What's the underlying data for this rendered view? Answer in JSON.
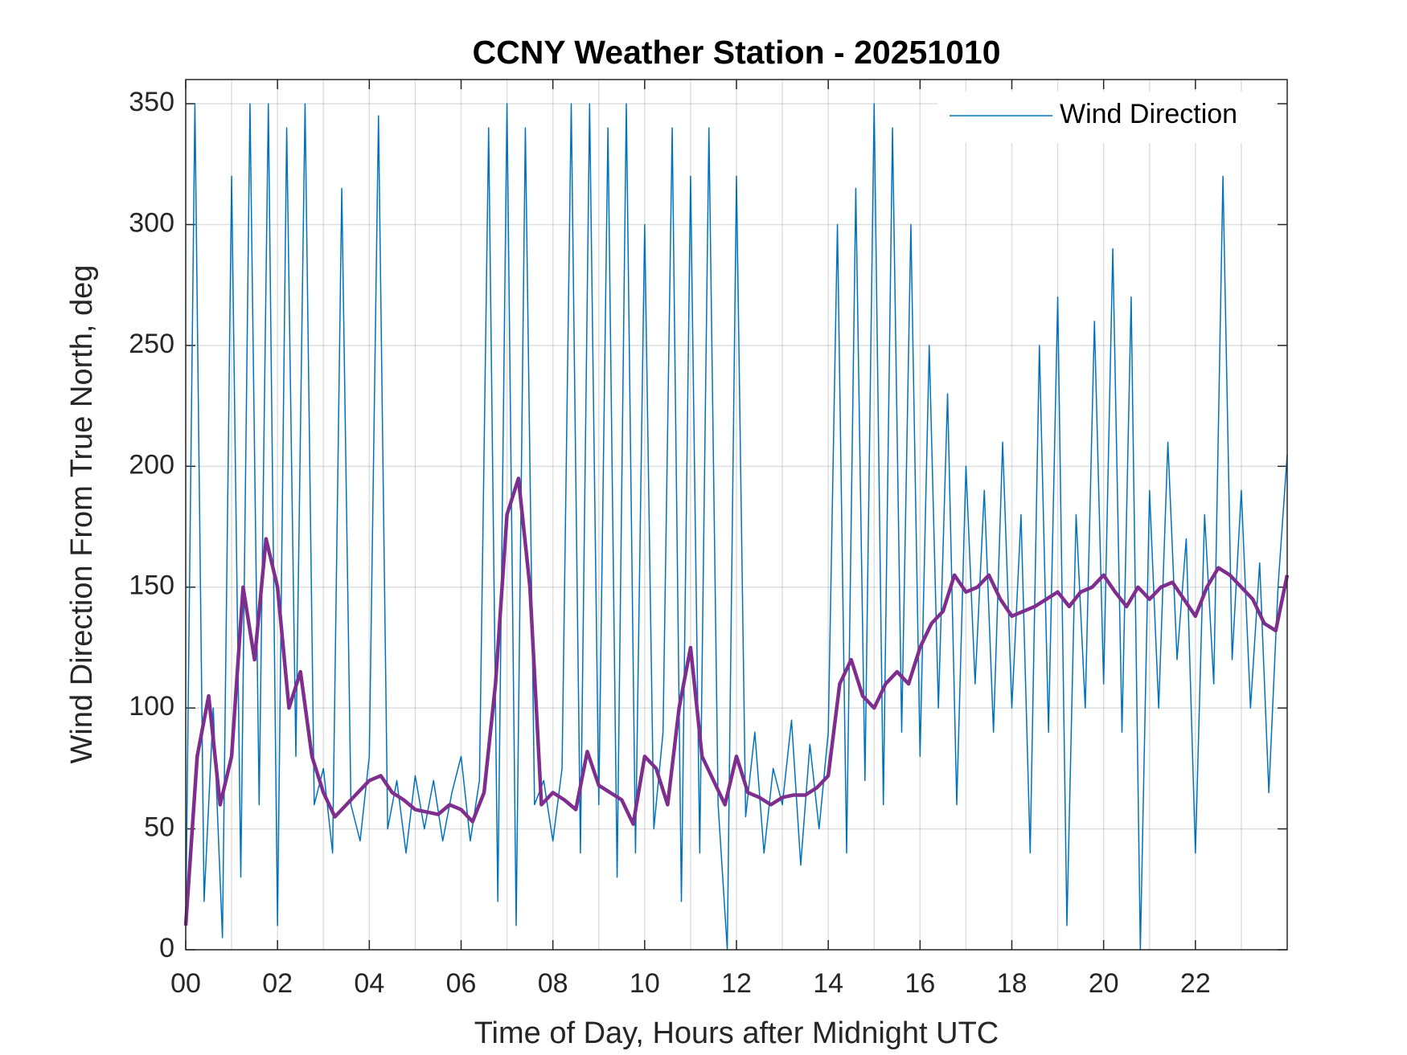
{
  "chart_data": {
    "type": "line",
    "title": "CCNY Weather Station - 20251010",
    "xlabel": "Time of Day, Hours after Midnight UTC",
    "ylabel": "Wind Direction From True North, deg",
    "xlim": [
      0,
      24
    ],
    "ylim": [
      0,
      360
    ],
    "xticks": [
      {
        "value": 0,
        "label": "00"
      },
      {
        "value": 2,
        "label": "02"
      },
      {
        "value": 4,
        "label": "04"
      },
      {
        "value": 6,
        "label": "06"
      },
      {
        "value": 8,
        "label": "08"
      },
      {
        "value": 10,
        "label": "10"
      },
      {
        "value": 12,
        "label": "12"
      },
      {
        "value": 14,
        "label": "14"
      },
      {
        "value": 16,
        "label": "16"
      },
      {
        "value": 18,
        "label": "18"
      },
      {
        "value": 20,
        "label": "20"
      },
      {
        "value": 22,
        "label": "22"
      }
    ],
    "xminorticks": [
      1,
      3,
      5,
      7,
      9,
      11,
      13,
      15,
      17,
      19,
      21,
      23
    ],
    "yticks": [
      0,
      50,
      100,
      150,
      200,
      250,
      300,
      350
    ],
    "grid": true,
    "legend": "upper right",
    "series": [
      {
        "name": "Wind Direction",
        "color": "#0072BD",
        "linewidth": 1.5,
        "x": [
          0,
          0.2,
          0.4,
          0.6,
          0.8,
          1,
          1.2,
          1.4,
          1.6,
          1.8,
          2,
          2.2,
          2.4,
          2.6,
          2.8,
          3,
          3.2,
          3.4,
          3.6,
          3.8,
          4,
          4.2,
          4.4,
          4.6,
          4.8,
          5,
          5.2,
          5.4,
          5.6,
          5.8,
          6,
          6.2,
          6.4,
          6.6,
          6.8,
          7,
          7.2,
          7.4,
          7.6,
          7.8,
          8,
          8.2,
          8.4,
          8.6,
          8.8,
          9,
          9.2,
          9.4,
          9.6,
          9.8,
          10,
          10.2,
          10.4,
          10.6,
          10.8,
          11,
          11.2,
          11.4,
          11.6,
          11.8,
          12,
          12.2,
          12.4,
          12.6,
          12.8,
          13,
          13.2,
          13.4,
          13.6,
          13.8,
          14,
          14.2,
          14.4,
          14.6,
          14.8,
          15,
          15.2,
          15.4,
          15.6,
          15.8,
          16,
          16.2,
          16.4,
          16.6,
          16.8,
          17,
          17.2,
          17.4,
          17.6,
          17.8,
          18,
          18.2,
          18.4,
          18.6,
          18.8,
          19,
          19.2,
          19.4,
          19.6,
          19.8,
          20,
          20.2,
          20.4,
          20.6,
          20.8,
          21,
          21.2,
          21.4,
          21.6,
          21.8,
          22,
          22.2,
          22.4,
          22.6,
          22.8,
          23,
          23.2,
          23.4,
          23.6,
          23.8,
          24
        ],
        "values": [
          10,
          350,
          20,
          100,
          5,
          320,
          30,
          350,
          60,
          350,
          10,
          340,
          80,
          350,
          60,
          75,
          40,
          315,
          60,
          45,
          80,
          345,
          50,
          70,
          40,
          72,
          50,
          70,
          45,
          65,
          80,
          45,
          70,
          340,
          20,
          350,
          10,
          340,
          60,
          70,
          45,
          75,
          350,
          40,
          350,
          60,
          340,
          30,
          350,
          40,
          300,
          50,
          90,
          340,
          20,
          320,
          40,
          340,
          60,
          0,
          320,
          55,
          90,
          40,
          75,
          60,
          95,
          35,
          85,
          50,
          90,
          300,
          40,
          315,
          70,
          350,
          60,
          340,
          90,
          300,
          80,
          250,
          100,
          230,
          60,
          200,
          110,
          190,
          90,
          210,
          100,
          180,
          40,
          250,
          90,
          270,
          10,
          180,
          100,
          260,
          110,
          290,
          90,
          270,
          0,
          190,
          100,
          210,
          120,
          170,
          40,
          180,
          110,
          320,
          120,
          190,
          100,
          160,
          65,
          150,
          205
        ]
      },
      {
        "color": "#7E2F8E",
        "linewidth": 4.5,
        "x": [
          0,
          0.25,
          0.5,
          0.75,
          1,
          1.25,
          1.5,
          1.75,
          2,
          2.25,
          2.5,
          2.75,
          3,
          3.25,
          3.5,
          3.75,
          4,
          4.25,
          4.5,
          4.75,
          5,
          5.25,
          5.5,
          5.75,
          6,
          6.25,
          6.5,
          6.75,
          7,
          7.25,
          7.5,
          7.75,
          8,
          8.25,
          8.5,
          8.75,
          9,
          9.25,
          9.5,
          9.75,
          10,
          10.25,
          10.5,
          10.75,
          11,
          11.25,
          11.5,
          11.75,
          12,
          12.25,
          12.5,
          12.75,
          13,
          13.25,
          13.5,
          13.75,
          14,
          14.25,
          14.5,
          14.75,
          15,
          15.25,
          15.5,
          15.75,
          16,
          16.25,
          16.5,
          16.75,
          17,
          17.25,
          17.5,
          17.75,
          18,
          18.25,
          18.5,
          18.75,
          19,
          19.25,
          19.5,
          19.75,
          20,
          20.25,
          20.5,
          20.75,
          21,
          21.25,
          21.5,
          21.75,
          22,
          22.25,
          22.5,
          22.75,
          23,
          23.25,
          23.5,
          23.75,
          24
        ],
        "values": [
          10,
          80,
          105,
          60,
          80,
          150,
          120,
          170,
          150,
          100,
          115,
          80,
          65,
          55,
          60,
          65,
          70,
          72,
          65,
          62,
          58,
          57,
          56,
          60,
          58,
          53,
          65,
          110,
          180,
          195,
          150,
          60,
          65,
          62,
          58,
          82,
          68,
          65,
          62,
          52,
          80,
          75,
          60,
          100,
          125,
          80,
          70,
          60,
          80,
          65,
          63,
          60,
          63,
          64,
          64,
          67,
          72,
          110,
          120,
          105,
          100,
          110,
          115,
          110,
          125,
          135,
          140,
          155,
          148,
          150,
          155,
          145,
          138,
          140,
          142,
          145,
          148,
          142,
          148,
          150,
          155,
          148,
          142,
          150,
          145,
          150,
          152,
          145,
          138,
          150,
          158,
          155,
          150,
          145,
          135,
          132,
          155
        ]
      }
    ]
  }
}
